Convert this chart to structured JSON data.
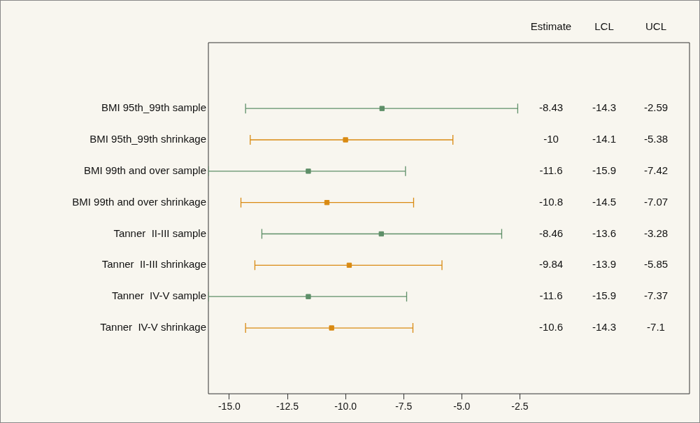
{
  "chart_data": {
    "type": "scatter",
    "orientation": "horizontal",
    "marker": "square",
    "grid": false,
    "legend": false,
    "categories": [
      "BMI 95th_99th sample",
      "BMI 95th_99th shrinkage",
      "BMI 99th and over sample",
      "BMI 99th and over shrinkage",
      "Tanner  II-III sample",
      "Tanner  II-III shrinkage",
      "Tanner  IV-V sample",
      "Tanner  IV-V shrinkage"
    ],
    "values": [
      -8.43,
      -10,
      -11.6,
      -10.8,
      -8.46,
      -9.84,
      -11.6,
      -10.6
    ],
    "errors": [
      [
        -14.3,
        -2.59
      ],
      [
        -14.1,
        -5.38
      ],
      [
        -15.9,
        -7.42
      ],
      [
        -14.5,
        -7.07
      ],
      [
        -13.6,
        -3.28
      ],
      [
        -13.9,
        -5.85
      ],
      [
        -15.9,
        -7.37
      ],
      [
        -14.3,
        -7.1
      ]
    ],
    "colors": [
      "#5e8f68",
      "#d98a12",
      "#5e8f68",
      "#d98a12",
      "#5e8f68",
      "#d98a12",
      "#5e8f68",
      "#d98a12"
    ],
    "xlim": [
      -15.9,
      4.8
    ],
    "xticks": [
      {
        "value": -15,
        "label": "-15.0"
      },
      {
        "value": -12.5,
        "label": "-12.5"
      },
      {
        "value": -10,
        "label": "-10.0"
      },
      {
        "value": -7.5,
        "label": "-7.5"
      },
      {
        "value": -5,
        "label": "-5.0"
      },
      {
        "value": -2.5,
        "label": "-2.5"
      }
    ],
    "annotations": [
      "Estimate",
      "LCL",
      "UCL",
      "-8.43",
      "-14.3",
      "-2.59",
      "-10",
      "-14.1",
      "-5.38",
      "-11.6",
      "-15.9",
      "-7.42",
      "-10.8",
      "-14.5",
      "-7.07",
      "-8.46",
      "-13.6",
      "-3.28",
      "-9.84",
      "-13.9",
      "-5.85",
      "-11.6",
      "-15.9",
      "-7.37",
      "-10.6",
      "-14.3",
      "-7.1"
    ]
  }
}
